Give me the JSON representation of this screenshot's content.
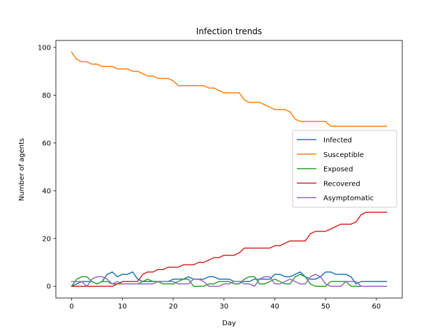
{
  "chart_data": {
    "type": "line",
    "title": "Infection trends",
    "xlabel": "Day",
    "ylabel": "Number of agents",
    "xlim": [
      -3.1,
      65.1
    ],
    "ylim": [
      -4.9,
      102.9
    ],
    "xticks": [
      0,
      10,
      20,
      30,
      40,
      50,
      60
    ],
    "yticks": [
      0,
      20,
      40,
      60,
      80,
      100
    ],
    "grid": false,
    "legend_position": "center-right",
    "x": [
      0,
      1,
      2,
      3,
      4,
      5,
      6,
      7,
      8,
      9,
      10,
      11,
      12,
      13,
      14,
      15,
      16,
      17,
      18,
      19,
      20,
      21,
      22,
      23,
      24,
      25,
      26,
      27,
      28,
      29,
      30,
      31,
      32,
      33,
      34,
      35,
      36,
      37,
      38,
      39,
      40,
      41,
      42,
      43,
      44,
      45,
      46,
      47,
      48,
      49,
      50,
      51,
      52,
      53,
      54,
      55,
      56,
      57,
      58,
      59,
      60,
      61,
      62
    ],
    "series": [
      {
        "name": "Infected",
        "color": "#1f77b4",
        "values": [
          0,
          1,
          2,
          2,
          2,
          1,
          2,
          5,
          6,
          4,
          5,
          5,
          6,
          3,
          2,
          2,
          2,
          2,
          2,
          2,
          3,
          3,
          3,
          4,
          3,
          3,
          3,
          4,
          4,
          3,
          3,
          3,
          2,
          2,
          2,
          2,
          3,
          3,
          3,
          3,
          5,
          5,
          4,
          4,
          5,
          6,
          4,
          3,
          3,
          4,
          6,
          6,
          5,
          5,
          5,
          4,
          1,
          2,
          2,
          2,
          2,
          2,
          2
        ]
      },
      {
        "name": "Susceptible",
        "color": "#ff7f0e",
        "values": [
          98,
          95,
          94,
          94,
          93,
          93,
          92,
          92,
          92,
          91,
          91,
          91,
          90,
          90,
          89,
          88,
          88,
          87,
          87,
          87,
          86,
          84,
          84,
          84,
          84,
          84,
          84,
          83,
          83,
          82,
          81,
          81,
          81,
          81,
          78,
          77,
          77,
          77,
          76,
          75,
          74,
          74,
          74,
          73,
          70,
          69,
          69,
          69,
          69,
          69,
          69,
          67,
          67,
          67,
          67,
          67,
          67,
          67,
          67,
          67,
          67,
          67,
          67
        ]
      },
      {
        "name": "Exposed",
        "color": "#2ca02c",
        "values": [
          0,
          3,
          4,
          4,
          2,
          1,
          2,
          2,
          1,
          1,
          1,
          1,
          1,
          1,
          2,
          3,
          2,
          2,
          1,
          1,
          1,
          2,
          3,
          3,
          0,
          0,
          0,
          1,
          1,
          2,
          2,
          2,
          1,
          1,
          3,
          4,
          4,
          1,
          1,
          2,
          3,
          2,
          1,
          1,
          4,
          5,
          4,
          1,
          0,
          0,
          0,
          2,
          2,
          2,
          2,
          0,
          0,
          0,
          0,
          0,
          0,
          0,
          0
        ]
      },
      {
        "name": "Recovered",
        "color": "#d62728",
        "values": [
          0,
          0,
          0,
          0,
          0,
          0,
          0,
          0,
          0,
          1,
          2,
          2,
          2,
          2,
          5,
          6,
          6,
          7,
          7,
          8,
          8,
          8,
          9,
          9,
          9,
          10,
          10,
          11,
          12,
          12,
          13,
          13,
          13,
          14,
          16,
          16,
          16,
          16,
          16,
          16,
          17,
          17,
          18,
          19,
          19,
          19,
          19,
          22,
          23,
          23,
          23,
          24,
          25,
          26,
          26,
          26,
          27,
          30,
          31,
          31,
          31,
          31,
          31
        ]
      },
      {
        "name": "Asymptomatic",
        "color": "#9467bd",
        "values": [
          2,
          2,
          2,
          0,
          3,
          4,
          4,
          3,
          1,
          2,
          1,
          1,
          1,
          1,
          1,
          1,
          1,
          2,
          2,
          2,
          2,
          1,
          1,
          1,
          3,
          3,
          2,
          0,
          0,
          0,
          1,
          1,
          2,
          2,
          1,
          1,
          0,
          3,
          4,
          4,
          1,
          1,
          2,
          3,
          2,
          1,
          1,
          4,
          5,
          4,
          1,
          0,
          0,
          0,
          2,
          2,
          2,
          0,
          0,
          0,
          0,
          0,
          0
        ]
      }
    ]
  }
}
